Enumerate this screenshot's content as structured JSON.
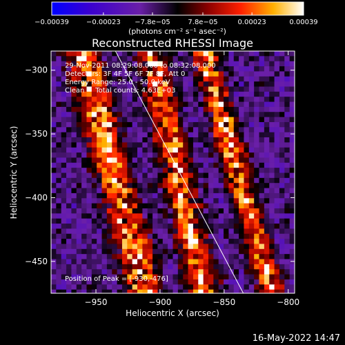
{
  "chart_data": {
    "type": "heatmap",
    "title": "Reconstructed RHESSI Image",
    "xlabel": "Heliocentric X (arcsec)",
    "ylabel": "Heliocentric Y (arcsec)",
    "xlim": [
      -985,
      -795
    ],
    "ylim": [
      -475,
      -285
    ],
    "xticks": [
      -950,
      -900,
      -850,
      -800
    ],
    "yticks": [
      -300,
      -350,
      -400,
      -450
    ],
    "colorbar": {
      "min": -0.00039,
      "max": 0.00039,
      "ticks": [
        -0.00039,
        -0.00023,
        -7.8e-05,
        7.8e-05,
        0.00023,
        0.00039
      ],
      "tick_labels": [
        "-0.00039",
        "-0.00023",
        "-7.8e-05",
        "7.8e-05",
        "0.00023",
        "0.00039"
      ],
      "units": "(photons cm⁻² s⁻¹ asec⁻²)"
    },
    "annotations": [
      "29-Nov-2011 08:29:08.000 to 08:32:08.000",
      "Detectors: 3F 4F 5F 6F 7F 8F, Att 0",
      "Energy Range: 25.0 - 50.0 keV",
      "Clean     Total counts: 4.63E+03",
      "Position of Peak = [-930,-476]"
    ],
    "limb_line": {
      "x": [
        -940,
        -835
      ],
      "y": [
        -275,
        -475
      ]
    },
    "grid": false
  },
  "footer": {
    "timestamp": "16-May-2022 14:47"
  }
}
